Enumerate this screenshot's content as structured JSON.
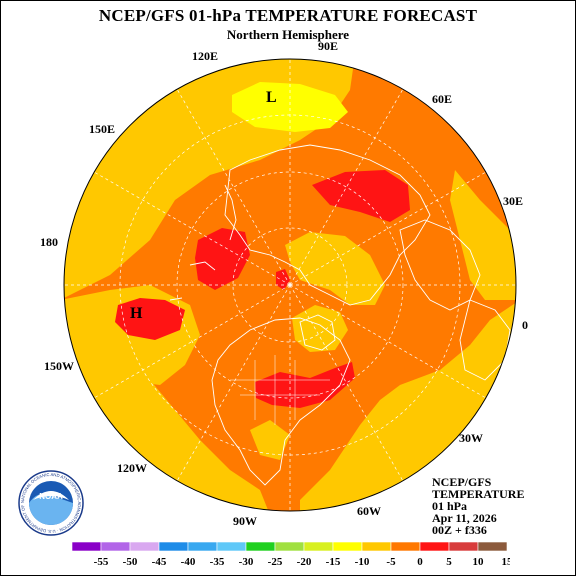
{
  "header": {
    "title": "NCEP/GFS 01-hPa TEMPERATURE FORECAST",
    "subtitle": "Northern Hemisphere"
  },
  "longitude_labels": {
    "lon_90e": "90E",
    "lon_120e": "120E",
    "lon_60e": "60E",
    "lon_150e": "150E",
    "lon_30e": "30E",
    "lon_180": "180",
    "lon_0": "0",
    "lon_150w": "150W",
    "lon_30w": "30W",
    "lon_120w": "120W",
    "lon_60w": "60W",
    "lon_90w": "90W"
  },
  "pressure_centers": {
    "low": "L",
    "high": "H"
  },
  "info_block": {
    "line1": "NCEP/GFS",
    "line2": "TEMPERATURE",
    "line3": "01 hPa",
    "line4": "Apr 11, 2026",
    "line5": "00Z + f336"
  },
  "colorbar": {
    "ticks": [
      "-55",
      "-50",
      "-45",
      "-40",
      "-35",
      "-30",
      "-25",
      "-20",
      "-15",
      "-10",
      "-5",
      "0",
      "5",
      "10",
      "15"
    ],
    "colors": [
      "#8a00c8",
      "#b265e8",
      "#d9a8f0",
      "#1e8ce8",
      "#38a8f0",
      "#5fc8f8",
      "#20d020",
      "#a0e040",
      "#d8f020",
      "#ffff00",
      "#ffc800",
      "#ff7800",
      "#ff1414",
      "#d83c3c",
      "#8c5a3c"
    ]
  },
  "colors": {
    "field_orange": "#ff7a00",
    "field_gold": "#ffc800",
    "field_yellow": "#ffff00",
    "field_red": "#ff1414",
    "coast": "#ffffff"
  },
  "logo": {
    "name": "NOAA",
    "ring_text": "NATIONAL OCEANIC AND ATMOSPHERIC ADMINISTRATION · U.S. DEPARTMENT OF COMMERCE"
  }
}
